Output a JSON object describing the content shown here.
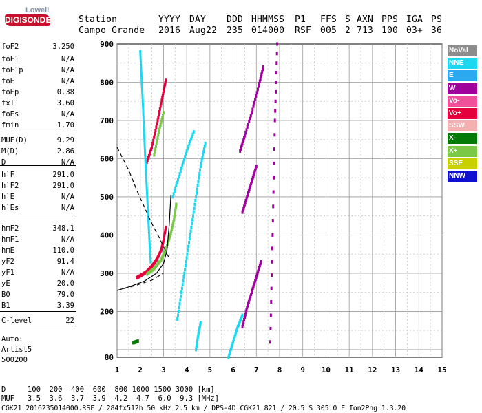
{
  "logo": {
    "line1": "Lowell",
    "line2": "DIGISONDE"
  },
  "header": {
    "station_label": "Station",
    "station_name": "Campo Grande",
    "yyyy_label": "YYYY",
    "yyyy": "2016",
    "day_label": "DAY",
    "day": "Aug22",
    "ddd_label": "DDD",
    "ddd": "235",
    "hhmmss_label": "HHMMSS",
    "hhmmss": "014000",
    "p1_label": "P1",
    "p1": "RSF",
    "ffs_label": "FFS",
    "ffs": "005",
    "s_label": "S",
    "s": "2",
    "axn_label": "AXN",
    "axn": "713",
    "pps_label": "PPS",
    "pps": "100",
    "iga_label": "IGA",
    "iga": "03+",
    "ps_label": "PS",
    "ps": "36"
  },
  "params": [
    {
      "label": "foF2",
      "value": "3.250"
    },
    {
      "label": "foF1",
      "value": "N/A"
    },
    {
      "label": "foF1p",
      "value": "N/A"
    },
    {
      "label": "foE",
      "value": "N/A"
    },
    {
      "label": "foEp",
      "value": "0.38"
    },
    {
      "label": "fxI",
      "value": "3.60"
    },
    {
      "label": "foEs",
      "value": "N/A"
    },
    {
      "label": "fmin",
      "value": "1.70"
    },
    {
      "label": "MUF(D)",
      "value": "9.29"
    },
    {
      "label": "M(D)",
      "value": "2.86"
    },
    {
      "label": "D",
      "value": "N/A"
    },
    {
      "label": "h`F",
      "value": "291.0"
    },
    {
      "label": "h`F2",
      "value": "291.0"
    },
    {
      "label": "h`E",
      "value": "N/A"
    },
    {
      "label": "h`Es",
      "value": "N/A"
    },
    {
      "label": "hmF2",
      "value": "348.1"
    },
    {
      "label": "hmF1",
      "value": "N/A"
    },
    {
      "label": "hmE",
      "value": "110.0"
    },
    {
      "label": "yF2",
      "value": "91.4"
    },
    {
      "label": "yF1",
      "value": "N/A"
    },
    {
      "label": "yE",
      "value": "20.0"
    },
    {
      "label": "B0",
      "value": "79.0"
    },
    {
      "label": "B1",
      "value": "3.39"
    },
    {
      "label": "C-level",
      "value": "22"
    }
  ],
  "auto": {
    "line1": "Auto:",
    "line2": "Artist5",
    "line3": "500200"
  },
  "legend": [
    {
      "label": "NoVal",
      "color": "#8c8c8c"
    },
    {
      "label": "NNE",
      "color": "#1ed8f0"
    },
    {
      "label": "E",
      "color": "#2aa8f0"
    },
    {
      "label": "W",
      "color": "#a0009c"
    },
    {
      "label": "Vo-",
      "color": "#f0509a"
    },
    {
      "label": "Vo+",
      "color": "#e4003c"
    },
    {
      "label": "SSW",
      "color": "#f4b0b0"
    },
    {
      "label": "X-",
      "color": "#067a06"
    },
    {
      "label": "X+",
      "color": "#7ac846"
    },
    {
      "label": "SSE",
      "color": "#c8d000"
    },
    {
      "label": "NNW",
      "color": "#1010d0"
    }
  ],
  "footer": {
    "d_row": "D     100  200  400  600  800 1000 1500 3000 [km]",
    "muf_row": "MUF   3.5  3.6  3.7  3.9  4.2  4.7  6.0  9.3 [MHz]",
    "file_row": "CGK21_2016235014000.RSF / 284fx512h 50 kHz 2.5 km / DPS-4D CGK21 821 / 20.5 S 305.0 E Ion2Png 1.3.20"
  },
  "chart_data": {
    "type": "scatter",
    "title": "",
    "xlabel": "",
    "ylabel": "",
    "xlim": [
      1,
      15
    ],
    "ylim": [
      80,
      900
    ],
    "x_ticks": [
      1,
      2,
      3,
      4,
      5,
      6,
      7,
      8,
      9,
      10,
      11,
      12,
      13,
      14,
      15
    ],
    "y_ticks": [
      200,
      300,
      400,
      500,
      600,
      700,
      800,
      900
    ],
    "grid": true,
    "legend_placement": "right",
    "traces": [
      {
        "name": "Vo+",
        "points": [
          [
            1.85,
            288
          ],
          [
            2.05,
            295
          ],
          [
            2.3,
            305
          ],
          [
            2.5,
            318
          ],
          [
            2.7,
            335
          ],
          [
            2.9,
            360
          ],
          [
            3.0,
            385
          ],
          [
            3.1,
            420
          ]
        ]
      },
      {
        "name": "X+",
        "points": [
          [
            2.3,
            298
          ],
          [
            2.6,
            312
          ],
          [
            2.9,
            335
          ],
          [
            3.1,
            362
          ],
          [
            3.3,
            400
          ],
          [
            3.45,
            440
          ],
          [
            3.55,
            480
          ]
        ]
      },
      {
        "name": "Vo+",
        "points": [
          [
            2.25,
            585
          ],
          [
            2.5,
            630
          ],
          [
            2.75,
            700
          ],
          [
            2.95,
            760
          ],
          [
            3.1,
            805
          ]
        ]
      },
      {
        "name": "X+",
        "points": [
          [
            2.6,
            610
          ],
          [
            2.8,
            670
          ],
          [
            3.0,
            720
          ]
        ]
      },
      {
        "name": "NNE",
        "points": [
          [
            2.0,
            880
          ],
          [
            2.05,
            820
          ],
          [
            2.1,
            760
          ],
          [
            2.15,
            690
          ],
          [
            2.2,
            620
          ],
          [
            2.25,
            560
          ],
          [
            2.3,
            500
          ],
          [
            2.35,
            440
          ],
          [
            2.4,
            380
          ],
          [
            2.45,
            330
          ]
        ]
      },
      {
        "name": "NNE",
        "points": [
          [
            3.6,
            180
          ],
          [
            3.8,
            260
          ],
          [
            4.0,
            340
          ],
          [
            4.2,
            420
          ],
          [
            4.4,
            500
          ],
          [
            4.6,
            580
          ],
          [
            4.8,
            640
          ]
        ]
      },
      {
        "name": "NNE",
        "points": [
          [
            3.4,
            500
          ],
          [
            3.7,
            560
          ],
          [
            4.0,
            620
          ],
          [
            4.3,
            670
          ]
        ]
      },
      {
        "name": "NNE",
        "points": [
          [
            4.4,
            100
          ],
          [
            4.5,
            140
          ],
          [
            4.6,
            170
          ]
        ]
      },
      {
        "name": "NNE",
        "points": [
          [
            5.8,
            80
          ],
          [
            6.0,
            120
          ],
          [
            6.2,
            160
          ],
          [
            6.4,
            190
          ]
        ]
      },
      {
        "name": "W",
        "points": [
          [
            6.4,
            160
          ],
          [
            6.6,
            210
          ],
          [
            6.8,
            250
          ],
          [
            7.0,
            290
          ],
          [
            7.2,
            330
          ]
        ]
      },
      {
        "name": "W",
        "points": [
          [
            6.4,
            460
          ],
          [
            6.6,
            500
          ],
          [
            6.8,
            540
          ],
          [
            7.0,
            580
          ]
        ]
      },
      {
        "name": "W",
        "points": [
          [
            6.3,
            620
          ],
          [
            6.5,
            660
          ],
          [
            6.8,
            720
          ],
          [
            7.1,
            790
          ],
          [
            7.3,
            840
          ]
        ]
      },
      {
        "name": "W",
        "points": [
          [
            7.6,
            120
          ],
          [
            7.7,
            400
          ],
          [
            7.8,
            700
          ],
          [
            7.9,
            900
          ]
        ]
      },
      {
        "name": "X-",
        "points": [
          [
            1.7,
            118
          ],
          [
            1.8,
            120
          ],
          [
            1.9,
            122
          ]
        ]
      }
    ],
    "curves": [
      {
        "name": "model",
        "style": "solid",
        "points": [
          [
            1.0,
            255
          ],
          [
            1.6,
            266
          ],
          [
            2.2,
            280
          ],
          [
            2.7,
            300
          ],
          [
            3.0,
            325
          ],
          [
            3.15,
            360
          ],
          [
            3.25,
            430
          ],
          [
            3.32,
            505
          ]
        ]
      },
      {
        "name": "profile",
        "style": "dashed",
        "points": [
          [
            1.0,
            630
          ],
          [
            1.5,
            570
          ],
          [
            1.9,
            510
          ],
          [
            2.2,
            470
          ],
          [
            2.5,
            430
          ],
          [
            2.8,
            395
          ],
          [
            3.0,
            370
          ],
          [
            3.15,
            350
          ],
          [
            3.25,
            340
          ]
        ]
      },
      {
        "name": "profile",
        "style": "dashed",
        "points": [
          [
            1.0,
            255
          ],
          [
            1.8,
            268
          ],
          [
            2.5,
            282
          ],
          [
            3.0,
            300
          ]
        ]
      }
    ]
  }
}
